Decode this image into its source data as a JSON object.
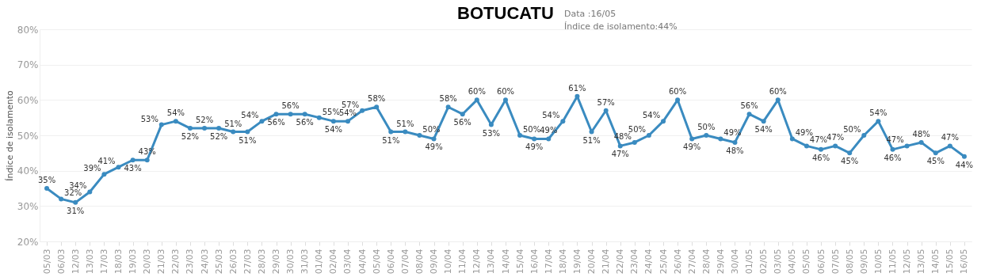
{
  "chart_data": {
    "type": "line",
    "title": "BOTUCATU",
    "ylabel": "Índice de isolamento",
    "annotations": [
      "Data :16/05",
      "Índice de isolamento:44%"
    ],
    "categories": [
      "05/03",
      "06/03",
      "12/03",
      "13/03",
      "17/03",
      "18/03",
      "19/03",
      "20/03",
      "21/03",
      "22/03",
      "23/03",
      "24/03",
      "25/03",
      "26/03",
      "27/03",
      "28/03",
      "29/03",
      "30/03",
      "31/03",
      "01/04",
      "02/04",
      "03/04",
      "04/04",
      "05/04",
      "06/04",
      "07/04",
      "08/04",
      "09/04",
      "10/04",
      "11/04",
      "12/04",
      "13/04",
      "14/04",
      "15/04",
      "16/04",
      "17/04",
      "18/04",
      "19/04",
      "20/04",
      "21/04",
      "22/04",
      "23/04",
      "24/04",
      "25/04",
      "26/04",
      "27/04",
      "28/04",
      "29/04",
      "30/04",
      "01/05",
      "02/05",
      "03/05",
      "04/05",
      "05/05",
      "06/05",
      "07/05",
      "08/05",
      "09/05",
      "10/05",
      "11/05",
      "12/05",
      "13/05",
      "14/05",
      "15/05",
      "16/05"
    ],
    "series": [
      {
        "color": "#3a8bc0",
        "values": [
          35,
          32,
          31,
          34,
          39,
          41,
          43,
          43,
          53,
          54,
          52,
          52,
          52,
          51,
          51,
          54,
          56,
          56,
          56,
          55,
          54,
          54,
          57,
          58,
          51,
          51,
          50,
          49,
          58,
          56,
          60,
          53,
          60,
          50,
          49,
          49,
          54,
          61,
          51,
          57,
          47,
          48,
          50,
          54,
          60,
          49,
          50,
          49,
          48,
          56,
          54,
          60,
          49,
          47,
          46,
          47,
          45,
          50,
          54,
          46,
          47,
          48,
          45,
          47,
          44
        ],
        "value_labels": [
          "35%",
          "32%",
          "31%",
          "34%",
          "39%",
          "41%",
          "43%",
          "43%",
          "53%",
          "54%",
          "52%",
          "52%",
          "52%",
          "51%",
          "51%",
          "54%",
          "56%",
          "56%",
          "56%",
          "55%",
          "54%",
          "54%",
          "57%",
          "58%",
          "51%",
          "51%",
          "50%",
          "49%",
          "58%",
          "56%",
          "60%",
          "53%",
          "60%",
          "50%",
          "49%",
          "49%",
          "54%",
          "61%",
          "51%",
          "57%",
          "47%",
          "48%",
          "50%",
          "54%",
          "60%",
          "49%",
          "50%",
          "49%",
          "48%",
          "56%",
          "54%",
          "60%",
          "49%",
          "47%",
          "46%",
          "47%",
          "45%",
          "50%",
          "54%",
          "46%",
          "47%",
          "48%",
          "45%",
          "47%",
          "44%"
        ]
      }
    ],
    "ylim": [
      20,
      80
    ],
    "yticks": [
      {
        "value": 20,
        "label": "20%"
      },
      {
        "value": 30,
        "label": "30%"
      },
      {
        "value": 40,
        "label": "40%"
      },
      {
        "value": 50,
        "label": "50%"
      },
      {
        "value": 60,
        "label": "60%"
      },
      {
        "value": 70,
        "label": "70%"
      },
      {
        "value": 80,
        "label": "80%"
      }
    ],
    "grid": "y",
    "marker": "circle",
    "line_style": "solid"
  }
}
